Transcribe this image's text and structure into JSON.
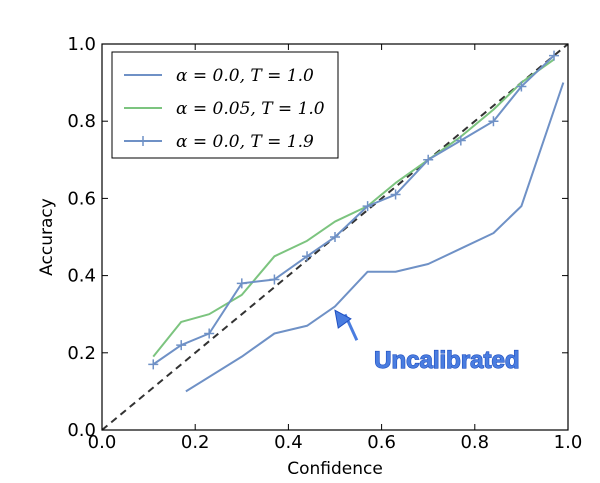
{
  "chart_data": {
    "type": "line",
    "title": "",
    "xlabel": "Confidence",
    "ylabel": "Accuracy",
    "xlim": [
      0.0,
      1.0
    ],
    "ylim": [
      0.0,
      1.0
    ],
    "xticks": [
      "0.0",
      "0.2",
      "0.4",
      "0.6",
      "0.8",
      "1.0"
    ],
    "yticks": [
      "0.0",
      "0.2",
      "0.4",
      "0.6",
      "0.8",
      "1.0"
    ],
    "grid": false,
    "legend_position": "top-left",
    "reference_line": {
      "x": [
        0.0,
        1.0
      ],
      "y": [
        0.0,
        1.0
      ],
      "style": "dashed",
      "color": "#333333"
    },
    "series": [
      {
        "name": "α = 0.0, T = 1.0",
        "color": "#6f91c6",
        "marker": "none",
        "x": [
          0.18,
          0.3,
          0.37,
          0.44,
          0.5,
          0.57,
          0.63,
          0.7,
          0.77,
          0.84,
          0.9,
          0.99
        ],
        "y": [
          0.1,
          0.19,
          0.25,
          0.27,
          0.32,
          0.41,
          0.41,
          0.43,
          0.47,
          0.51,
          0.58,
          0.9
        ]
      },
      {
        "name": "α = 0.05, T = 1.0",
        "color": "#7cc47f",
        "marker": "none",
        "x": [
          0.11,
          0.17,
          0.23,
          0.3,
          0.37,
          0.44,
          0.5,
          0.57,
          0.63,
          0.7,
          0.77,
          0.84,
          0.9,
          0.97
        ],
        "y": [
          0.19,
          0.28,
          0.3,
          0.35,
          0.45,
          0.49,
          0.54,
          0.58,
          0.64,
          0.7,
          0.76,
          0.83,
          0.9,
          0.96
        ]
      },
      {
        "name": "α = 0.0, T = 1.9",
        "color": "#6f91c6",
        "marker": "+",
        "x": [
          0.11,
          0.17,
          0.23,
          0.3,
          0.37,
          0.44,
          0.5,
          0.57,
          0.63,
          0.7,
          0.77,
          0.84,
          0.9,
          0.97
        ],
        "y": [
          0.17,
          0.22,
          0.25,
          0.38,
          0.39,
          0.45,
          0.5,
          0.58,
          0.61,
          0.7,
          0.75,
          0.8,
          0.89,
          0.97
        ]
      }
    ],
    "annotation": {
      "text": "Uncalibrated",
      "color": "#4a7de0",
      "arrow_to": [
        0.5,
        0.31
      ],
      "text_at": [
        0.74,
        0.16
      ]
    }
  }
}
